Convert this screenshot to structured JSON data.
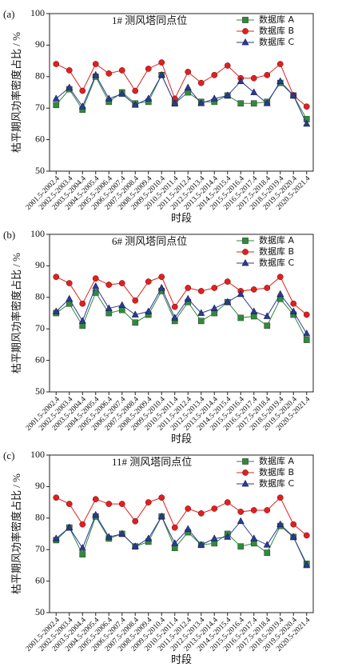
{
  "chart_data": [
    {
      "type": "line",
      "label": "(a)",
      "title": "1# 测风塔同点位",
      "y_label": "枯平期风功率密度占比 / %",
      "x_label": "时段",
      "categories": [
        "2001.5-2002.4",
        "2002.5-2003.4",
        "2003.5-2004.4",
        "2004.5-2005.4",
        "2005.5-2006.4",
        "2006.5-2007.4",
        "2007.5-2008.4",
        "2008.5-2009.4",
        "2009.5-2010.4",
        "2010.5-2011.4",
        "2011.5-2012.4",
        "2012.5-2013.4",
        "2013.5-2014.4",
        "2014.5-2015.4",
        "2015.5-2016.4",
        "2016.5-2017.4",
        "2017.5-2018.4",
        "2018.5-2019.4",
        "2019.5-2020.4",
        "2020.5-2021.4"
      ],
      "series": [
        {
          "name": "数据库 A",
          "color": "#2e8b3a",
          "marker": "square",
          "values": [
            71,
            76,
            69.5,
            80,
            72,
            75,
            71.5,
            72,
            80.5,
            71.5,
            75,
            72,
            72,
            74,
            71.5,
            71.5,
            72,
            78,
            74,
            66.5
          ]
        },
        {
          "name": "数据库 B",
          "color": "#e02020",
          "marker": "circle",
          "values": [
            84,
            82,
            75.5,
            84,
            81,
            82,
            75.5,
            82.5,
            84.5,
            73,
            81.5,
            78,
            80.5,
            83.5,
            79.5,
            79.5,
            80.5,
            84,
            74,
            70.5
          ]
        },
        {
          "name": "数据库 C",
          "color": "#2a3a9a",
          "marker": "triangle",
          "values": [
            73,
            76.5,
            70.5,
            80.5,
            73,
            74.5,
            71,
            73,
            80.5,
            71.5,
            76.5,
            71.5,
            73,
            74,
            78.5,
            75,
            71.5,
            78.5,
            74,
            65
          ]
        }
      ],
      "ylim": [
        50,
        100
      ],
      "yticks": [
        50,
        60,
        70,
        80,
        90,
        100
      ]
    },
    {
      "type": "line",
      "label": "(b)",
      "title": "6# 测风塔同点位",
      "y_label": "枯平期风功率密度占比 / %",
      "x_label": "时段",
      "categories": [
        "2001.5-2002.4",
        "2002.5-2003.4",
        "2003.5-2004.4",
        "2004.5-2005.4",
        "2005.5-2006.4",
        "2006.5-2007.4",
        "2007.5-2008.4",
        "2008.5-2009.4",
        "2009.5-2010.4",
        "2010.5-2011.4",
        "2011.5-2012.4",
        "2012.5-2013.4",
        "2013.5-2014.4",
        "2014.5-2015.4",
        "2015.5-2016.4",
        "2016.5-2017.4",
        "2017.5-2018.4",
        "2018.5-2019.4",
        "2019.5-2020.4",
        "2020.5-2021.4"
      ],
      "series": [
        {
          "name": "数据库 A",
          "color": "#2e8b3a",
          "marker": "square",
          "values": [
            75,
            78,
            71,
            81.5,
            75,
            76,
            72,
            74.5,
            82,
            72.5,
            78.5,
            72.5,
            75,
            78.5,
            73.5,
            74,
            71,
            79.5,
            74.5,
            66.5
          ]
        },
        {
          "name": "数据库 B",
          "color": "#e02020",
          "marker": "circle",
          "values": [
            86.5,
            84.5,
            78,
            86,
            84,
            84.5,
            79,
            85,
            86.5,
            77,
            83,
            82,
            83,
            85,
            82,
            82.5,
            83,
            86.5,
            78,
            74.5
          ]
        },
        {
          "name": "数据库 C",
          "color": "#2a3a9a",
          "marker": "triangle",
          "values": [
            75.5,
            79.5,
            72.5,
            83.5,
            76.5,
            77.5,
            74.5,
            75.5,
            83,
            73.5,
            79.5,
            75,
            76.5,
            78.5,
            81,
            75.5,
            74,
            81,
            75.5,
            68.5
          ]
        }
      ],
      "ylim": [
        50,
        100
      ],
      "yticks": [
        50,
        60,
        70,
        80,
        90,
        100
      ]
    },
    {
      "type": "line",
      "label": "(c)",
      "title": "11# 测风塔同点位",
      "y_label": "枯平期风功率密度占比 / %",
      "x_label": "时段",
      "categories": [
        "2001.5-2002.4",
        "2002.5-2003.4",
        "2003.5-2004.4",
        "2004.5-2005.4",
        "2005.5-2006.4",
        "2006.5-2007.4",
        "2007.5-2008.4",
        "2008.5-2009.4",
        "2009.5-2010.4",
        "2010.5-2011.4",
        "2011.5-2012.4",
        "2012.5-2013.4",
        "2013.5-2014.4",
        "2014.5-2015.4",
        "2015.5-2016.4",
        "2016.5-2017.4",
        "2017.5-2018.4",
        "2018.5-2019.4",
        "2019.5-2020.4",
        "2020.5-2021.4"
      ],
      "series": [
        {
          "name": "数据库 A",
          "color": "#2e8b3a",
          "marker": "square",
          "values": [
            73,
            77,
            68.5,
            80.5,
            73.5,
            75,
            71,
            72.5,
            80.5,
            70.5,
            75.5,
            71.5,
            72,
            75,
            71,
            72,
            69,
            77.5,
            74,
            65.5
          ]
        },
        {
          "name": "数据库 B",
          "color": "#e02020",
          "marker": "circle",
          "values": [
            86.5,
            84.5,
            78,
            86,
            84.5,
            84.5,
            79,
            85,
            86.5,
            77,
            83,
            81.5,
            83,
            85,
            82,
            82.5,
            82.5,
            86.5,
            78,
            74.5
          ]
        },
        {
          "name": "数据库 C",
          "color": "#2a3a9a",
          "marker": "triangle",
          "values": [
            73.5,
            77,
            70.5,
            81,
            74,
            75,
            71,
            73.5,
            80.5,
            72,
            76.5,
            71.5,
            73.5,
            74,
            79,
            73.5,
            71.5,
            78,
            74,
            65
          ]
        }
      ],
      "ylim": [
        50,
        100
      ],
      "yticks": [
        50,
        60,
        70,
        80,
        90,
        100
      ]
    }
  ]
}
